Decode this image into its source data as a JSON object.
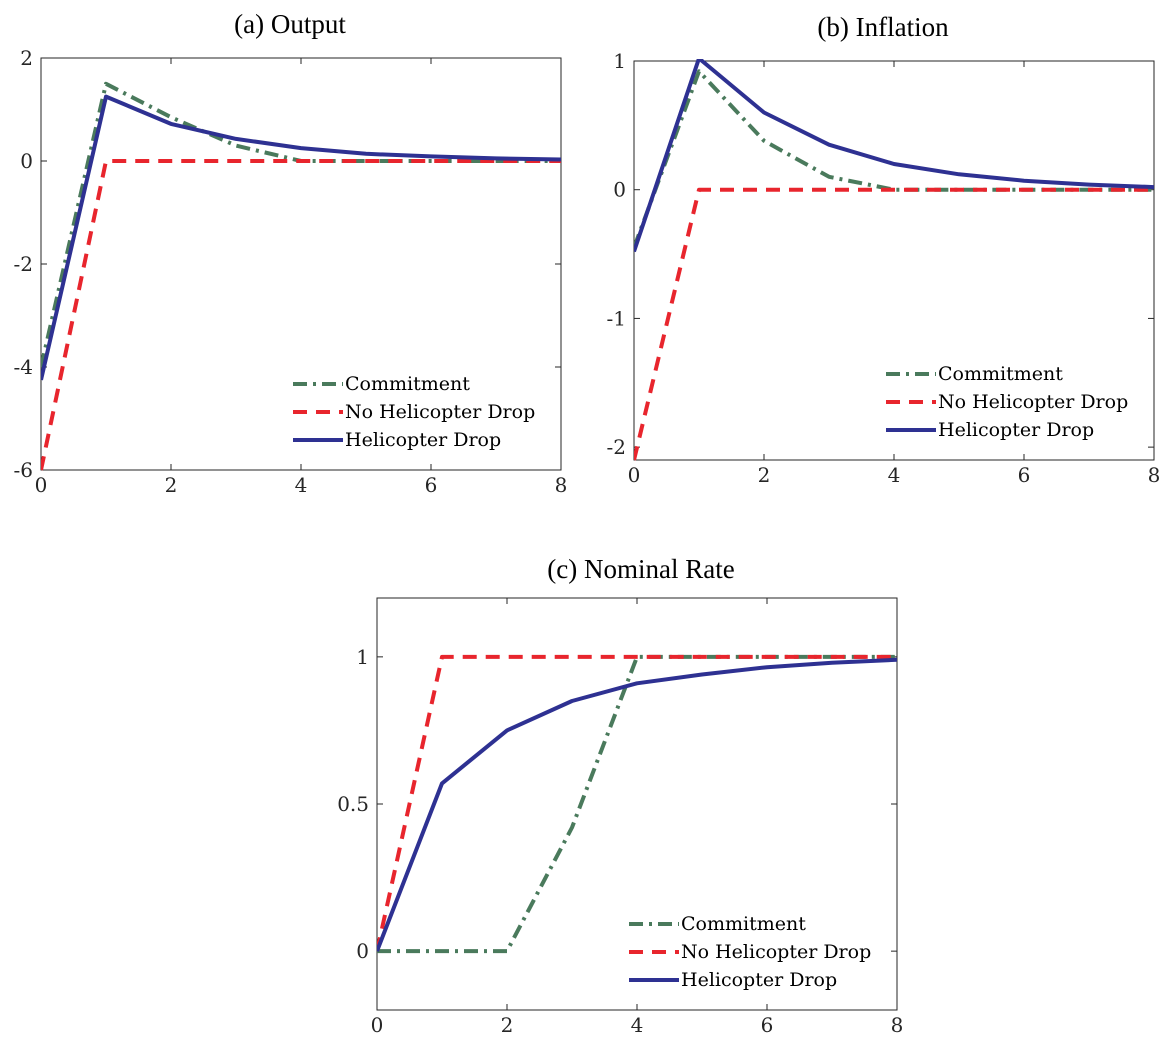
{
  "chart_data": [
    {
      "type": "line",
      "title": "(a) Output",
      "xlabel": "",
      "ylabel": "",
      "xlim": [
        0,
        8
      ],
      "ylim": [
        -6,
        2
      ],
      "xticks": [
        0,
        2,
        4,
        6,
        8
      ],
      "yticks": [
        -6,
        -4,
        -2,
        0,
        2
      ],
      "xtick_labels": [
        "0",
        "2",
        "4",
        "6",
        "8"
      ],
      "ytick_labels": [
        "-6",
        "-4",
        "-2",
        "0",
        "2"
      ],
      "grid": false,
      "legend_position": "bottom-right",
      "x": [
        0,
        1,
        2,
        3,
        4,
        5,
        6,
        7,
        8
      ],
      "series": [
        {
          "name": "Commitment",
          "color": "#4a7a5c",
          "style": "dashdot",
          "values": [
            -4.0,
            1.5,
            0.85,
            0.3,
            0.0,
            0.0,
            0.0,
            0.0,
            0.0
          ]
        },
        {
          "name": "No Helicopter Drop",
          "color": "#e8252d",
          "style": "dashed",
          "values": [
            -6.0,
            0.0,
            0.0,
            0.0,
            0.0,
            0.0,
            0.0,
            0.0,
            0.0
          ]
        },
        {
          "name": "Helicopter Drop",
          "color": "#2e3192",
          "style": "solid",
          "values": [
            -4.25,
            1.25,
            0.72,
            0.43,
            0.25,
            0.14,
            0.09,
            0.05,
            0.03
          ]
        }
      ]
    },
    {
      "type": "line",
      "title": "(b) Inflation",
      "xlabel": "",
      "ylabel": "",
      "xlim": [
        0,
        8
      ],
      "ylim": [
        -2.1,
        1.0
      ],
      "xticks": [
        0,
        2,
        4,
        6,
        8
      ],
      "yticks": [
        -2,
        -1,
        0,
        1
      ],
      "xtick_labels": [
        "0",
        "2",
        "4",
        "6",
        "8"
      ],
      "ytick_labels": [
        "-2",
        "-1",
        "0",
        "1"
      ],
      "grid": false,
      "legend_position": "bottom-right",
      "x": [
        0,
        1,
        2,
        3,
        4,
        5,
        6,
        7,
        8
      ],
      "series": [
        {
          "name": "Commitment",
          "color": "#4a7a5c",
          "style": "dashdot",
          "values": [
            -0.45,
            0.92,
            0.38,
            0.1,
            0.0,
            0.0,
            0.0,
            0.0,
            0.0
          ]
        },
        {
          "name": "No Helicopter Drop",
          "color": "#e8252d",
          "style": "dashed",
          "values": [
            -2.1,
            0.0,
            0.0,
            0.0,
            0.0,
            0.0,
            0.0,
            0.0,
            0.0
          ]
        },
        {
          "name": "Helicopter Drop",
          "color": "#2e3192",
          "style": "solid",
          "values": [
            -0.48,
            1.02,
            0.6,
            0.35,
            0.2,
            0.12,
            0.07,
            0.04,
            0.02
          ]
        }
      ]
    },
    {
      "type": "line",
      "title": "(c) Nominal Rate",
      "xlabel": "",
      "ylabel": "",
      "xlim": [
        0,
        8
      ],
      "ylim": [
        -0.2,
        1.2
      ],
      "xticks": [
        0,
        2,
        4,
        6,
        8
      ],
      "yticks": [
        0,
        0.5,
        1
      ],
      "xtick_labels": [
        "0",
        "2",
        "4",
        "6",
        "8"
      ],
      "ytick_labels": [
        "0",
        "0.5",
        "1"
      ],
      "grid": false,
      "legend_position": "bottom-right",
      "x": [
        0,
        1,
        2,
        3,
        4,
        5,
        6,
        7,
        8
      ],
      "series": [
        {
          "name": "Commitment",
          "color": "#4a7a5c",
          "style": "dashdot",
          "values": [
            0.0,
            0.0,
            0.0,
            0.42,
            1.0,
            1.0,
            1.0,
            1.0,
            1.0
          ]
        },
        {
          "name": "No Helicopter Drop",
          "color": "#e8252d",
          "style": "dashed",
          "values": [
            0.0,
            1.0,
            1.0,
            1.0,
            1.0,
            1.0,
            1.0,
            1.0,
            1.0
          ]
        },
        {
          "name": "Helicopter Drop",
          "color": "#2e3192",
          "style": "solid",
          "values": [
            0.0,
            0.57,
            0.75,
            0.85,
            0.91,
            0.94,
            0.965,
            0.98,
            0.99
          ]
        }
      ]
    }
  ]
}
